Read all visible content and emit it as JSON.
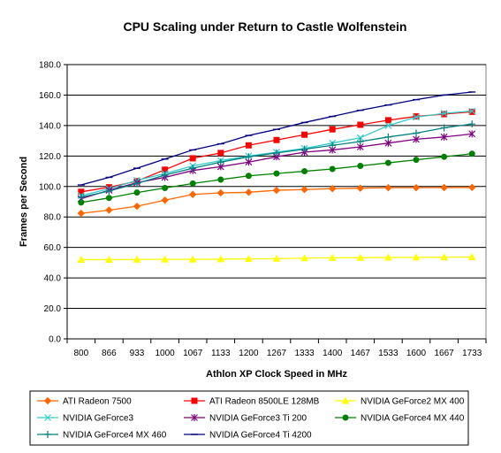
{
  "chart_data": {
    "type": "line",
    "title": "CPU Scaling under Return to Castle Wolfenstein",
    "xlabel": "Athlon XP Clock Speed in MHz",
    "ylabel": "Frames per Second",
    "categories": [
      "800",
      "866",
      "933",
      "1000",
      "1067",
      "1133",
      "1200",
      "1267",
      "1333",
      "1400",
      "1467",
      "1533",
      "1600",
      "1667",
      "1733"
    ],
    "ylim": [
      0,
      180
    ],
    "yticks": [
      "0.0",
      "20.0",
      "40.0",
      "60.0",
      "80.0",
      "100.0",
      "120.0",
      "140.0",
      "160.0",
      "180.0"
    ],
    "grid": "horizontal major gridlines",
    "legend_position": "bottom",
    "series": [
      {
        "name": "ATI Radeon 7500",
        "color": "#FF6600",
        "marker": "diamond",
        "values": [
          82.4,
          84.5,
          87.0,
          91.0,
          94.8,
          95.8,
          96.2,
          97.5,
          98.0,
          98.6,
          98.9,
          99.2,
          99.2,
          99.3,
          99.4
        ]
      },
      {
        "name": "ATI Radeon 8500LE 128MB",
        "color": "#FF0000",
        "marker": "square",
        "values": [
          96.5,
          99.5,
          103.5,
          111.0,
          118.5,
          122.0,
          127.0,
          130.5,
          134.0,
          137.5,
          140.5,
          143.5,
          146.0,
          147.5,
          149.0
        ]
      },
      {
        "name": "NVIDIA GeForce2 MX 400",
        "color": "#FFFF00",
        "marker": "triangle",
        "values": [
          52.0,
          52.0,
          52.1,
          52.2,
          52.2,
          52.3,
          52.5,
          52.6,
          53.0,
          53.2,
          53.3,
          53.4,
          53.5,
          53.6,
          53.7
        ]
      },
      {
        "name": "NVIDIA GeForce3",
        "color": "#33CCCC",
        "marker": "x",
        "values": [
          94.0,
          98.5,
          104.0,
          108.5,
          113.5,
          117.0,
          120.0,
          122.5,
          125.0,
          128.5,
          132.0,
          140.0,
          145.5,
          148.0,
          149.5
        ]
      },
      {
        "name": "NVIDIA GeForce3 Ti 200",
        "color": "#800080",
        "marker": "star",
        "values": [
          92.0,
          97.5,
          102.5,
          106.0,
          110.5,
          113.0,
          116.0,
          119.5,
          122.5,
          124.0,
          126.0,
          128.5,
          131.0,
          132.5,
          134.5
        ]
      },
      {
        "name": "NVIDIA GeForce4 MX 440",
        "color": "#008000",
        "marker": "circle",
        "values": [
          89.5,
          92.5,
          96.0,
          99.0,
          102.0,
          104.5,
          107.0,
          108.5,
          110.0,
          111.5,
          113.5,
          115.5,
          117.5,
          119.5,
          121.5
        ]
      },
      {
        "name": "NVIDIA GeForce4 MX 460",
        "color": "#008080",
        "marker": "plus",
        "values": [
          93.0,
          97.0,
          102.0,
          107.5,
          112.0,
          116.0,
          119.5,
          122.0,
          124.5,
          127.0,
          129.5,
          132.5,
          135.0,
          138.5,
          141.0
        ]
      },
      {
        "name": "NVIDIA GeForce4 Ti 4200",
        "color": "#000080",
        "marker": "dash",
        "values": [
          101.0,
          106.0,
          112.0,
          118.0,
          124.0,
          128.0,
          133.5,
          137.5,
          142.0,
          146.0,
          150.0,
          153.5,
          157.0,
          160.0,
          162.0
        ]
      }
    ]
  }
}
